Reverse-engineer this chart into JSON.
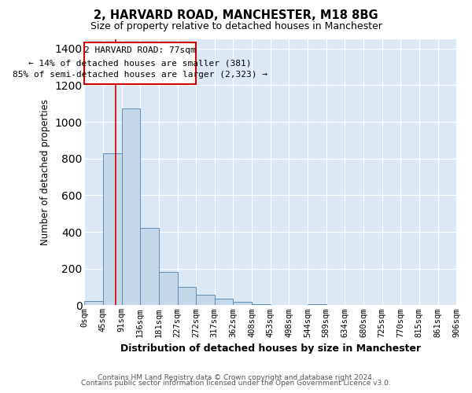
{
  "title": "2, HARVARD ROAD, MANCHESTER, M18 8BG",
  "subtitle": "Size of property relative to detached houses in Manchester",
  "xlabel": "Distribution of detached houses by size in Manchester",
  "ylabel": "Number of detached properties",
  "footer_line1": "Contains HM Land Registry data © Crown copyright and database right 2024.",
  "footer_line2": "Contains public sector information licensed under the Open Government Licence v3.0.",
  "bin_edges": [
    0,
    45,
    91,
    136,
    181,
    227,
    272,
    317,
    362,
    408,
    453,
    498,
    544,
    589,
    634,
    680,
    725,
    770,
    815,
    861,
    906
  ],
  "bin_labels": [
    "0sqm",
    "45sqm",
    "91sqm",
    "136sqm",
    "181sqm",
    "227sqm",
    "272sqm",
    "317sqm",
    "362sqm",
    "408sqm",
    "453sqm",
    "498sqm",
    "544sqm",
    "589sqm",
    "634sqm",
    "680sqm",
    "725sqm",
    "770sqm",
    "815sqm",
    "861sqm",
    "906sqm"
  ],
  "bar_heights": [
    25,
    830,
    1075,
    420,
    180,
    100,
    58,
    38,
    18,
    5,
    0,
    0,
    5,
    0,
    0,
    0,
    0,
    0,
    0,
    0
  ],
  "bar_color": "#c5d8ea",
  "bar_edge_color": "#5b8db8",
  "property_line_x": 77,
  "property_line_color": "#cc0000",
  "ylim": [
    0,
    1450
  ],
  "yticks": [
    0,
    200,
    400,
    600,
    800,
    1000,
    1200,
    1400
  ],
  "annotation_title": "2 HARVARD ROAD: 77sqm",
  "annotation_line1": "← 14% of detached houses are smaller (381)",
  "annotation_line2": "85% of semi-detached houses are larger (2,323) →",
  "bg_color": "#ffffff",
  "plot_bg_color": "#dce9f5",
  "grid_color": "#ffffff",
  "xlim_max": 906
}
